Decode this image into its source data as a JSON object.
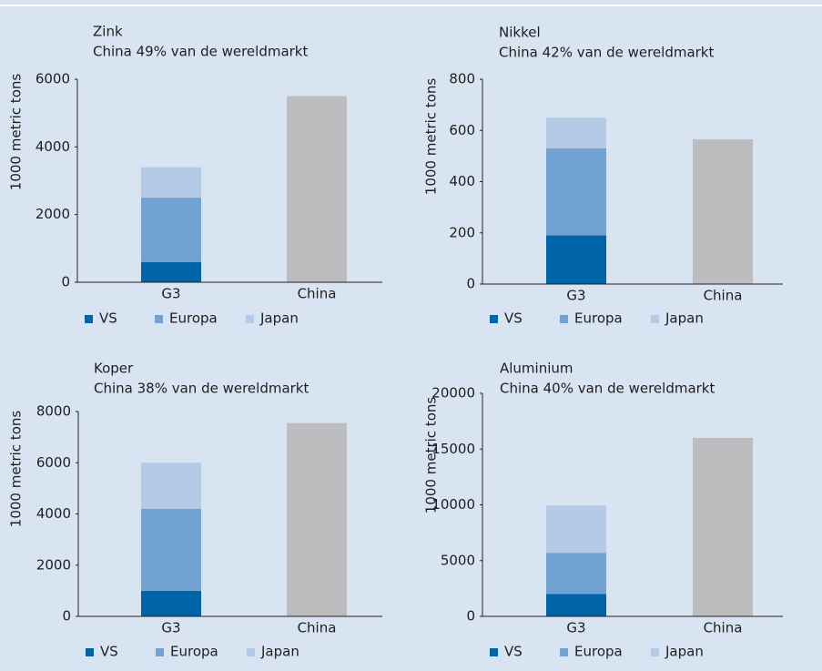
{
  "chart_data": [
    {
      "type": "stacked_bar",
      "title": "Zink",
      "subtitle": "China 49% van de wereldmarkt",
      "y_label": "1000 metric tons",
      "categories": [
        "G3",
        "China"
      ],
      "ylim": [
        0,
        6000
      ],
      "yticks": [
        0,
        2000,
        4000,
        6000
      ],
      "series": [
        {
          "name": "VS",
          "color": "#0064a8",
          "values": [
            600,
            null
          ]
        },
        {
          "name": "Europa",
          "color": "#72a2d2",
          "values": [
            1900,
            null
          ]
        },
        {
          "name": "Japan",
          "color": "#b4cbe7",
          "values": [
            900,
            null
          ]
        },
        {
          "color": "#bdbdbf",
          "values": [
            null,
            5500
          ]
        }
      ]
    },
    {
      "type": "stacked_bar",
      "title": "Nikkel",
      "subtitle": "China  42% van de wereldmarkt",
      "y_label": "1000 metric tons",
      "categories": [
        "G3",
        "China"
      ],
      "ylim": [
        0,
        800
      ],
      "yticks": [
        0,
        200,
        400,
        600,
        800
      ],
      "series": [
        {
          "name": "VS",
          "color": "#0064a8",
          "values": [
            190,
            null
          ]
        },
        {
          "name": "Europa",
          "color": "#72a2d2",
          "values": [
            340,
            null
          ]
        },
        {
          "name": "Japan",
          "color": "#b4cbe7",
          "values": [
            120,
            null
          ]
        },
        {
          "color": "#bdbdbf",
          "values": [
            null,
            565
          ]
        }
      ]
    },
    {
      "type": "stacked_bar",
      "title": "Koper",
      "subtitle": "China  38% van de wereldmarkt",
      "y_label": "1000 metric tons",
      "categories": [
        "G3",
        "China"
      ],
      "ylim": [
        0,
        8000
      ],
      "yticks": [
        0,
        2000,
        4000,
        6000,
        8000
      ],
      "series": [
        {
          "name": "VS",
          "color": "#0064a8",
          "values": [
            1000,
            null
          ]
        },
        {
          "name": "Europa",
          "color": "#72a2d2",
          "values": [
            3200,
            null
          ]
        },
        {
          "name": "Japan",
          "color": "#b4cbe7",
          "values": [
            1800,
            null
          ]
        },
        {
          "color": "#bdbdbf",
          "values": [
            null,
            7550
          ]
        }
      ]
    },
    {
      "type": "stacked_bar",
      "title": "Aluminium",
      "subtitle": "China 40% van de wereldmarkt",
      "y_label": "1000 metric tons",
      "categories": [
        "G3",
        "China"
      ],
      "ylim": [
        0,
        20000
      ],
      "yticks": [
        0,
        5000,
        10000,
        15000,
        20000
      ],
      "series": [
        {
          "name": "VS",
          "color": "#0064a8",
          "values": [
            2000,
            null
          ]
        },
        {
          "name": "Europa",
          "color": "#72a2d2",
          "values": [
            3700,
            null
          ]
        },
        {
          "name": "Japan",
          "color": "#b4cbe7",
          "values": [
            4250,
            null
          ]
        },
        {
          "color": "#bdbdbf",
          "values": [
            null,
            16000
          ]
        }
      ]
    }
  ]
}
